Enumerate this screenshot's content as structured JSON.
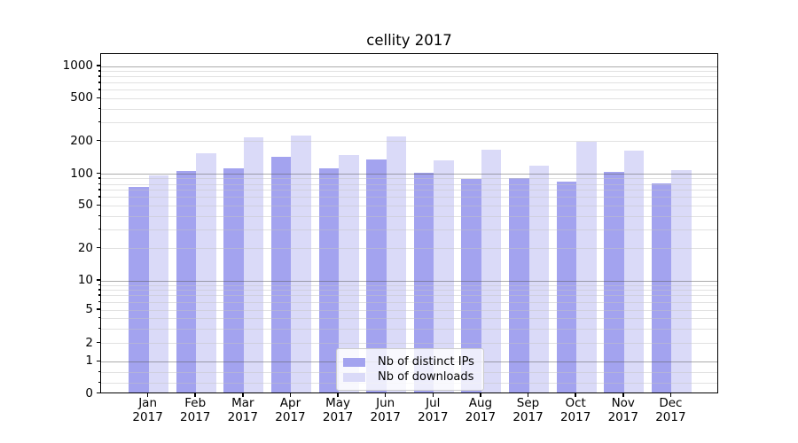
{
  "title": "cellity 2017",
  "legend": {
    "items": [
      {
        "label": "Nb of distinct IPs",
        "color": "#a3a3ef"
      },
      {
        "label": "Nb of downloads",
        "color": "#dadaf8"
      }
    ]
  },
  "y_axis": {
    "ticks": [
      {
        "value": 0,
        "label": "0"
      },
      {
        "value": 1,
        "label": "1"
      },
      {
        "value": 2,
        "label": "2"
      },
      {
        "value": 5,
        "label": "5"
      },
      {
        "value": 10,
        "label": "10"
      },
      {
        "value": 20,
        "label": "20"
      },
      {
        "value": 50,
        "label": "50"
      },
      {
        "value": 100,
        "label": "100"
      },
      {
        "value": 200,
        "label": "200"
      },
      {
        "value": 500,
        "label": "500"
      },
      {
        "value": 1000,
        "label": "1000"
      }
    ],
    "minor_ticks": [
      0.333,
      0.667,
      3,
      4,
      6,
      7,
      8,
      9,
      30,
      40,
      60,
      70,
      80,
      90,
      300,
      400,
      600,
      700,
      800,
      900
    ],
    "grid_major_color": "rgba(90,90,90,0.5)",
    "grid_minor_color": "rgba(195,195,195,0.5)"
  },
  "chart_data": {
    "type": "bar",
    "title": "cellity 2017",
    "categories": [
      "Jan 2017",
      "Feb 2017",
      "Mar 2017",
      "Apr 2017",
      "May 2017",
      "Jun 2017",
      "Jul 2017",
      "Aug 2017",
      "Sep 2017",
      "Oct 2017",
      "Nov 2017",
      "Dec 2017"
    ],
    "series": [
      {
        "name": "Nb of distinct IPs",
        "color": "#a3a3ef",
        "values": [
          73,
          102,
          109,
          139,
          109,
          131,
          100,
          86,
          89,
          81,
          101,
          78
        ]
      },
      {
        "name": "Nb of downloads",
        "color": "#dadaf8",
        "values": [
          93,
          150,
          210,
          217,
          144,
          213,
          128,
          161,
          116,
          192,
          159,
          105
        ]
      }
    ],
    "xlabel": "",
    "ylabel": "",
    "yscale": "symlog",
    "y_ticks": [
      0,
      1,
      2,
      5,
      10,
      20,
      50,
      100,
      200,
      500,
      1000
    ],
    "ylim": [
      0,
      1300
    ],
    "grid": true,
    "legend_position": "lower center"
  }
}
